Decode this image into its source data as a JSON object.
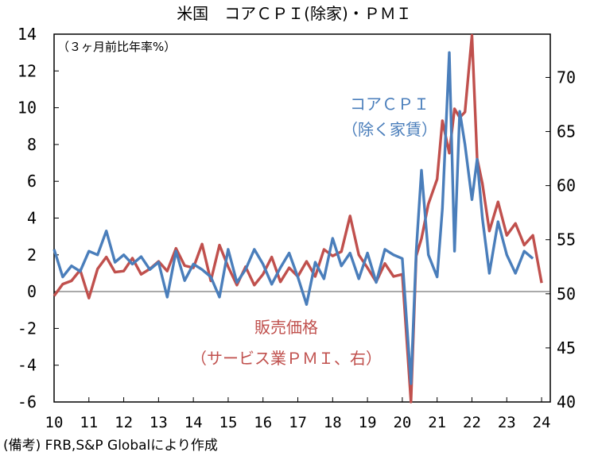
{
  "chart_data": {
    "type": "line",
    "title": "米国　コアＣＰＩ(除家)・ＰＭＩ",
    "unit_note": "（３ヶ月前比年率%）",
    "source": "(備考) FRB,S&P Globalにより作成",
    "x_tick_labels": [
      "10",
      "11",
      "12",
      "13",
      "14",
      "15",
      "16",
      "17",
      "18",
      "19",
      "20",
      "21",
      "22",
      "23",
      "24"
    ],
    "left_axis": {
      "min": -6,
      "max": 14,
      "ticks": [
        14,
        12,
        10,
        8,
        6,
        4,
        2,
        0,
        -2,
        -4,
        -6
      ]
    },
    "right_axis": {
      "min": 40,
      "max": 74,
      "ticks": [
        70,
        65,
        60,
        55,
        50,
        45,
        40
      ]
    },
    "series": [
      {
        "name": "コアＣＰＩ",
        "label_line1": "コアＣＰＩ",
        "label_line2": "（除く家賃）",
        "axis": "left",
        "color": "#4a7ebb",
        "x": [
          2010.0,
          2010.25,
          2010.5,
          2010.75,
          2011.0,
          2011.25,
          2011.5,
          2011.75,
          2012.0,
          2012.25,
          2012.5,
          2012.75,
          2013.0,
          2013.25,
          2013.5,
          2013.75,
          2014.0,
          2014.25,
          2014.5,
          2014.75,
          2015.0,
          2015.25,
          2015.5,
          2015.75,
          2016.0,
          2016.25,
          2016.5,
          2016.75,
          2017.0,
          2017.25,
          2017.5,
          2017.75,
          2018.0,
          2018.25,
          2018.5,
          2018.75,
          2019.0,
          2019.25,
          2019.5,
          2019.75,
          2020.0,
          2020.25,
          2020.4,
          2020.55,
          2020.75,
          2021.0,
          2021.15,
          2021.35,
          2021.5,
          2021.65,
          2021.8,
          2022.0,
          2022.15,
          2022.3,
          2022.5,
          2022.75,
          2023.0,
          2023.25,
          2023.5,
          2023.75,
          2024.0
        ],
        "values": [
          2.3,
          0.8,
          1.4,
          1.1,
          2.2,
          2.0,
          3.3,
          1.6,
          2.0,
          1.5,
          1.9,
          1.2,
          1.6,
          -0.3,
          2.2,
          0.6,
          1.5,
          1.2,
          0.8,
          -0.3,
          2.3,
          0.5,
          1.2,
          2.3,
          1.5,
          0.4,
          1.3,
          2.1,
          0.8,
          -0.7,
          1.6,
          0.7,
          2.9,
          1.4,
          2.1,
          0.7,
          2.1,
          0.5,
          2.3,
          2.0,
          1.8,
          -5.0,
          2.2,
          6.6,
          2.0,
          0.8,
          4.5,
          13.0,
          2.2,
          9.8,
          8.0,
          5.0,
          7.2,
          4.0,
          1.0,
          3.8,
          2.0,
          1.0,
          2.2,
          1.8,
          null
        ]
      },
      {
        "name": "販売価格",
        "label_line1": "販売価格",
        "label_line2": "（サービス業ＰＭＩ、右）",
        "axis": "right",
        "color": "#c0504d",
        "x": [
          2010.0,
          2010.25,
          2010.5,
          2010.75,
          2011.0,
          2011.25,
          2011.5,
          2011.75,
          2012.0,
          2012.25,
          2012.5,
          2012.75,
          2013.0,
          2013.25,
          2013.5,
          2013.75,
          2014.0,
          2014.25,
          2014.5,
          2014.75,
          2015.0,
          2015.25,
          2015.5,
          2015.75,
          2016.0,
          2016.25,
          2016.5,
          2016.75,
          2017.0,
          2017.25,
          2017.5,
          2017.75,
          2018.0,
          2018.25,
          2018.5,
          2018.75,
          2019.0,
          2019.25,
          2019.5,
          2019.75,
          2020.0,
          2020.25,
          2020.4,
          2020.55,
          2020.75,
          2021.0,
          2021.15,
          2021.35,
          2021.5,
          2021.65,
          2021.8,
          2022.0,
          2022.15,
          2022.3,
          2022.5,
          2022.75,
          2023.0,
          2023.25,
          2023.5,
          2023.75,
          2024.0
        ],
        "values": [
          49.8,
          50.9,
          51.2,
          52.2,
          49.6,
          52.3,
          53.4,
          52.0,
          52.1,
          53.3,
          51.8,
          52.3,
          53.0,
          52.1,
          54.2,
          52.6,
          52.4,
          54.6,
          51.2,
          54.5,
          52.5,
          50.8,
          52.5,
          50.8,
          51.8,
          53.4,
          51.1,
          52.4,
          51.6,
          53.0,
          51.6,
          54.1,
          53.5,
          53.9,
          57.2,
          53.6,
          52.4,
          51.1,
          52.8,
          51.6,
          51.8,
          40.0,
          53.5,
          55.1,
          58.3,
          60.6,
          66.0,
          63.0,
          67.1,
          66.3,
          66.8,
          73.9,
          62.5,
          60.2,
          55.8,
          58.5,
          55.4,
          56.5,
          54.5,
          55.4,
          51.0
        ]
      }
    ]
  }
}
